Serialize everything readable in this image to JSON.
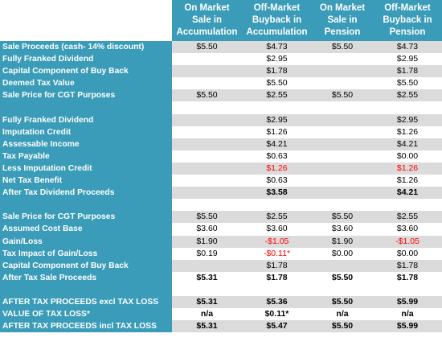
{
  "headers": [
    "On Market Sale in Accumulation",
    "Off-Market Buyback in Accumulation",
    "On Market Sale in Pension",
    "Off-Market Buyback in Pension"
  ],
  "header_lines": [
    [
      "On Market",
      "Sale in",
      "Accumulation"
    ],
    [
      "Off-Market",
      "Buyback in",
      "Accumulation"
    ],
    [
      "On Market",
      "Sale in",
      "Pension"
    ],
    [
      "Off-Market",
      "Buyback in",
      "Pension"
    ]
  ],
  "rows": [
    {
      "label": "Sale Proceeds (cash- 14% discount)",
      "values": [
        "$5.50",
        "$4.73",
        "$5.50",
        "$4.73"
      ]
    },
    {
      "label": "Fully Franked Dividend",
      "values": [
        "",
        "$2.95",
        "",
        "$2.95"
      ]
    },
    {
      "label": "Capital Component  of Buy Back",
      "values": [
        "",
        "$1.78",
        "",
        "$1.78"
      ]
    },
    {
      "label": "Deemed Tax Value",
      "values": [
        "",
        "$5.50",
        "",
        "$5.50"
      ]
    },
    {
      "label": "Sale Price for CGT Purposes",
      "values": [
        "$5.50",
        "$2.55",
        "$5.50",
        "$2.55"
      ]
    },
    {
      "label": "",
      "values": [
        "",
        "",
        "",
        ""
      ]
    },
    {
      "label": "Fully Franked Dividend",
      "values": [
        "",
        "$2.95",
        "",
        "$2.95"
      ]
    },
    {
      "label": "Imputation Credit",
      "values": [
        "",
        "$1.26",
        "",
        "$1.26"
      ]
    },
    {
      "label": "Assessable Income",
      "values": [
        "",
        "$4.21",
        "",
        "$4.21"
      ]
    },
    {
      "label": "Tax Payable",
      "values": [
        "",
        "$0.63",
        "",
        "$0.00"
      ]
    },
    {
      "label": "Less Imputation Credit",
      "values": [
        "",
        "$1.26",
        "",
        "$1.26"
      ]
    },
    {
      "label": "Net Tax Benefit",
      "values": [
        "",
        "$0.63",
        "",
        "$1.26"
      ]
    },
    {
      "label": "After Tax Dividend Proceeds",
      "values": [
        "",
        "$3.58",
        "",
        "$4.21"
      ]
    },
    {
      "label": "",
      "values": [
        "",
        "",
        "",
        ""
      ]
    },
    {
      "label": "Sale Price for CGT Purposes",
      "values": [
        "$5.50",
        "$2.55",
        "$5.50",
        "$2.55"
      ]
    },
    {
      "label": "Assumed Cost Base",
      "values": [
        "$3.60",
        "$3.60",
        "$3.60",
        "$3.60"
      ]
    },
    {
      "label": "Gain/Loss",
      "values": [
        "$1.90",
        "-$1.05",
        "$1.90",
        "-$1.05"
      ]
    },
    {
      "label": "Tax Impact of Gain/Loss",
      "values": [
        "$0.19",
        "-$0.11*",
        "$0.00",
        "$0.00"
      ]
    },
    {
      "label": "Capital Component  of Buy Back",
      "values": [
        "",
        "$1.78",
        "",
        "$1.78"
      ]
    },
    {
      "label": "After Tax Sale Proceeds",
      "values": [
        "$5.31",
        "$1.78",
        "$5.50",
        "$1.78"
      ]
    },
    {
      "label": "",
      "values": [
        "",
        "",
        "",
        ""
      ]
    },
    {
      "label": "AFTER TAX PROCEEDS excl TAX LOSS",
      "values": [
        "$5.31",
        "$5.36",
        "$5.50",
        "$5.99"
      ]
    },
    {
      "label": "VALUE OF TAX LOSS*",
      "values": [
        "n/a",
        "$0.11*",
        "n/a",
        "n/a"
      ]
    },
    {
      "label": "AFTER TAX PROCEEDS incl TAX LOSS",
      "values": [
        "$5.31",
        "$5.47",
        "$5.50",
        "$5.99"
      ]
    }
  ],
  "colors": {
    "header_bg": "#3a9cb8",
    "stripe": "#dbdbdb",
    "negative": "#ff0000"
  }
}
